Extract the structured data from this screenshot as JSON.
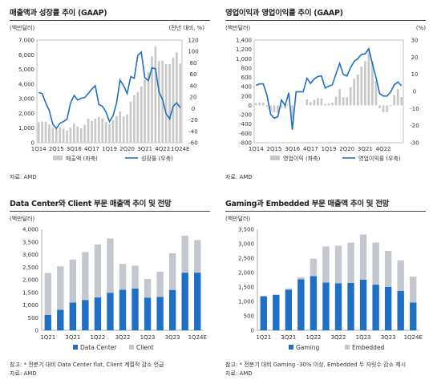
{
  "colors": {
    "bar": "#c8c8c8",
    "line": "#1f6fc4",
    "dc": "#1f6fc4",
    "client": "#c4c8ce",
    "gaming": "#1f6fc4",
    "embedded": "#c4c8ce"
  },
  "panels": {
    "p1": {
      "title": "매출액과 성장률 추이 (GAAP)",
      "source": "자료: AMD"
    },
    "p2": {
      "title": "영업이익과 영업이익률 추이 (GAAP)",
      "source": "자료: AMD"
    },
    "p3": {
      "title": "Data Center와 Client 부문 매출액 추이 및 전망",
      "note": "참고: * 전분기 대비 Data Center flat, Client 계절적 감소 언급",
      "source": "자료: AMD"
    },
    "p4": {
      "title": "Gaming과 Embedded 부문 매출액 추이 및 전망",
      "note": "참고: * 전분기 대비 Gaming -30% 이상, Embedded 두 자릿수 감소 제시",
      "source": "자료: AMD"
    }
  },
  "chart_data": [
    {
      "type": "bar+line",
      "title": "매출액과 성장률 추이 (GAAP)",
      "ylabel_left": "(백만달러)",
      "ylabel_right": "(전년 대비, %)",
      "ylim_left": [
        0,
        7000
      ],
      "yticks_left": [
        "0",
        "1,000",
        "2,000",
        "3,000",
        "4,000",
        "5,000",
        "6,000",
        "7,000"
      ],
      "ylim_right": [
        -60,
        120
      ],
      "yticks_right": [
        "-60",
        "-40",
        "-20",
        "0",
        "20",
        "40",
        "60",
        "80",
        "100",
        "120"
      ],
      "x": [
        "1Q14",
        "2Q14",
        "3Q14",
        "4Q14",
        "1Q15",
        "2Q15",
        "3Q15",
        "4Q15",
        "1Q16",
        "2Q16",
        "3Q16",
        "4Q16",
        "1Q17",
        "2Q17",
        "3Q17",
        "4Q17",
        "1Q18",
        "2Q18",
        "3Q18",
        "4Q18",
        "1Q19",
        "2Q19",
        "3Q19",
        "4Q19",
        "1Q20",
        "2Q20",
        "3Q20",
        "4Q20",
        "1Q21",
        "2Q21",
        "3Q21",
        "4Q21",
        "1Q22",
        "2Q22",
        "3Q22",
        "4Q22",
        "1Q23",
        "2Q23",
        "3Q23",
        "4Q23",
        "1Q24E"
      ],
      "xticklabels": [
        "1Q14",
        "2Q15",
        "3Q16",
        "4Q17",
        "1Q19",
        "2Q20",
        "3Q21",
        "4Q22",
        "1Q24E"
      ],
      "series": [
        {
          "name": "매출액 (좌축)",
          "type": "bar",
          "values": [
            1397,
            1440,
            1430,
            1240,
            1030,
            942,
            1060,
            958,
            832,
            1027,
            1307,
            1106,
            984,
            1222,
            1643,
            1480,
            1647,
            1756,
            1653,
            1419,
            1272,
            1531,
            1801,
            2127,
            1786,
            1932,
            2801,
            3244,
            3445,
            3850,
            4313,
            4826,
            5887,
            6550,
            5565,
            5599,
            5353,
            5359,
            5800,
            6168,
            5400
          ]
        },
        {
          "name": "성장률 (우축)",
          "type": "line",
          "values": [
            28,
            26,
            10,
            -4,
            -28,
            -35,
            -26,
            -23,
            -19,
            9,
            23,
            15,
            18,
            19,
            26,
            34,
            40,
            7,
            4,
            -6,
            -23,
            -13,
            9,
            50,
            40,
            26,
            56,
            53,
            93,
            99,
            54,
            49,
            71,
            70,
            29,
            16,
            -9,
            -18,
            4,
            10,
            1
          ]
        }
      ]
    },
    {
      "type": "bar+line",
      "title": "영업이익과 영업이익률 추이 (GAAP)",
      "ylabel_left": "(백만달러)",
      "ylabel_right": "(%)",
      "ylim_left": [
        -800,
        1400
      ],
      "yticks_left": [
        "-800",
        "-600",
        "-400",
        "-200",
        "0",
        "200",
        "400",
        "600",
        "800",
        "1,000",
        "1,200",
        "1,400"
      ],
      "ylim_right": [
        -30,
        30
      ],
      "yticks_right": [
        "-30",
        "-20",
        "-10",
        "0",
        "10",
        "20",
        "30"
      ],
      "x": [
        "1Q14",
        "2Q14",
        "3Q14",
        "4Q14",
        "1Q15",
        "2Q15",
        "3Q15",
        "4Q15",
        "1Q16",
        "2Q16",
        "3Q16",
        "4Q16",
        "1Q17",
        "2Q17",
        "3Q17",
        "4Q17",
        "1Q18",
        "2Q18",
        "3Q18",
        "4Q18",
        "1Q19",
        "2Q19",
        "3Q19",
        "4Q19",
        "1Q20",
        "2Q20",
        "3Q20",
        "4Q20",
        "1Q21",
        "2Q21",
        "3Q21",
        "4Q21",
        "1Q22",
        "2Q22",
        "3Q22",
        "4Q22",
        "1Q23",
        "2Q23",
        "3Q23",
        "4Q23",
        "1Q24E"
      ],
      "xticklabels": [
        "1Q14",
        "2Q15",
        "3Q16",
        "4Q17",
        "1Q19",
        "2Q20",
        "3Q21",
        "4Q22"
      ],
      "series": [
        {
          "name": "영업이익 (좌축)",
          "type": "bar",
          "values": [
            49,
            63,
            63,
            -26,
            -137,
            -147,
            -158,
            -49,
            -68,
            -8,
            -293,
            -3,
            -3,
            -3,
            126,
            69,
            120,
            153,
            150,
            28,
            38,
            59,
            186,
            348,
            177,
            173,
            390,
            570,
            662,
            831,
            948,
            1207,
            951,
            526,
            -64,
            -149,
            -145,
            -20,
            224,
            342,
            180
          ]
        },
        {
          "name": "영업이익률 (우축)",
          "type": "line",
          "values": [
            3.5,
            4.4,
            4.4,
            -2.1,
            -13.3,
            -15.6,
            -14.9,
            -5.1,
            -8.2,
            -0.8,
            -22.4,
            -0.3,
            -0.3,
            -0.2,
            7.7,
            4.7,
            7.3,
            8.7,
            9.1,
            2.0,
            3.0,
            3.9,
            10.3,
            16.4,
            9.9,
            9.0,
            13.9,
            17.6,
            19.2,
            21.6,
            22.0,
            25.0,
            16.2,
            8.0,
            -1.2,
            -2.7,
            -2.7,
            -0.4,
            3.9,
            5.5,
            3.3
          ]
        }
      ]
    },
    {
      "type": "stacked-bar",
      "title": "Data Center와 Client 부문 매출액 추이 및 전망",
      "ylabel": "(백만달러)",
      "ylim": [
        0,
        4000
      ],
      "yticks": [
        "0",
        "500",
        "1,000",
        "1,500",
        "2,000",
        "2,500",
        "3,000",
        "3,500",
        "4,000"
      ],
      "x": [
        "1Q21",
        "2Q21",
        "3Q21",
        "4Q21",
        "1Q22",
        "2Q22",
        "3Q22",
        "4Q22",
        "1Q23",
        "2Q23",
        "3Q23",
        "4Q23",
        "1Q24E"
      ],
      "xticklabels": [
        "1Q21",
        "3Q21",
        "1Q22",
        "3Q22",
        "1Q23",
        "3Q23",
        "1Q24E"
      ],
      "series": [
        {
          "name": "Data Center",
          "values": [
            610,
            813,
            1100,
            1200,
            1300,
            1486,
            1609,
            1655,
            1295,
            1321,
            1598,
            2282,
            2282
          ]
        },
        {
          "name": "Client",
          "values": [
            1660,
            1720,
            1700,
            1900,
            2100,
            2150,
            1022,
            903,
            739,
            998,
            1453,
            1461,
            1290
          ]
        }
      ]
    },
    {
      "type": "stacked-bar",
      "title": "Gaming과 Embedded 부문 매출액 추이 및 전망",
      "ylabel": "(백만달러)",
      "ylim": [
        0,
        3500
      ],
      "yticks": [
        "0",
        "500",
        "1,000",
        "1,500",
        "2,000",
        "2,500",
        "3,000",
        "3,500"
      ],
      "x": [
        "1Q21",
        "2Q21",
        "3Q21",
        "4Q21",
        "1Q22",
        "2Q22",
        "3Q22",
        "4Q22",
        "1Q23",
        "2Q23",
        "3Q23",
        "4Q23",
        "1Q24E"
      ],
      "xticklabels": [
        "1Q21",
        "3Q21",
        "1Q22",
        "3Q22",
        "1Q23",
        "3Q23",
        "1Q24E"
      ],
      "series": [
        {
          "name": "Gaming",
          "values": [
            1180,
            1230,
            1410,
            1770,
            1880,
            1655,
            1631,
            1644,
            1757,
            1581,
            1506,
            1368,
            960
          ]
        },
        {
          "name": "Embedded",
          "values": [
            0,
            0,
            40,
            70,
            600,
            1250,
            1300,
            1393,
            1562,
            1459,
            1243,
            1057,
            900
          ]
        }
      ]
    }
  ]
}
